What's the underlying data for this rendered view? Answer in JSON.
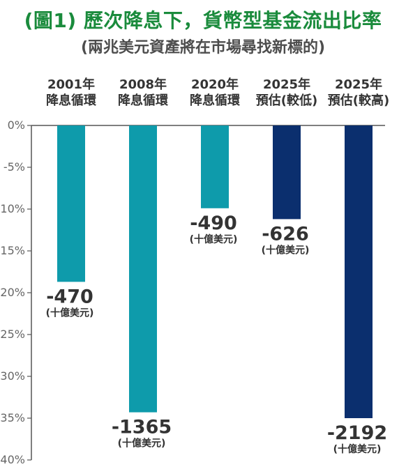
{
  "title": "(圖1) 歷次降息下，貨幣型基金流出比率",
  "subtitle": "(兩兆美元資產將在市場尋找新標的)",
  "chart_data": {
    "type": "bar",
    "categories": [
      [
        "2001年",
        "降息循環"
      ],
      [
        "2008年",
        "降息循環"
      ],
      [
        "2020年",
        "降息循環"
      ],
      [
        "2025年",
        "預估(較低)"
      ],
      [
        "2025年",
        "預估(較高)"
      ]
    ],
    "values": [
      -18.7,
      -34.3,
      -9.9,
      -11.2,
      -35.0
    ],
    "value_labels": [
      "-470",
      "-1365",
      "-490",
      "-626",
      "-2192"
    ],
    "value_unit": "(十億美元)",
    "bar_colors": [
      "#0e9bab",
      "#0e9bab",
      "#0e9bab",
      "#0b2f6e",
      "#0b2f6e"
    ],
    "ylim": [
      -40,
      0
    ],
    "yticks": [
      0,
      -5,
      -10,
      -15,
      -20,
      -25,
      -30,
      -35,
      -40
    ],
    "ytick_labels": [
      "0%",
      "-5%",
      "-10%",
      "-15%",
      "-20%",
      "-25%",
      "-30%",
      "-35%",
      "-40%"
    ],
    "grid": false,
    "legend": "none"
  }
}
